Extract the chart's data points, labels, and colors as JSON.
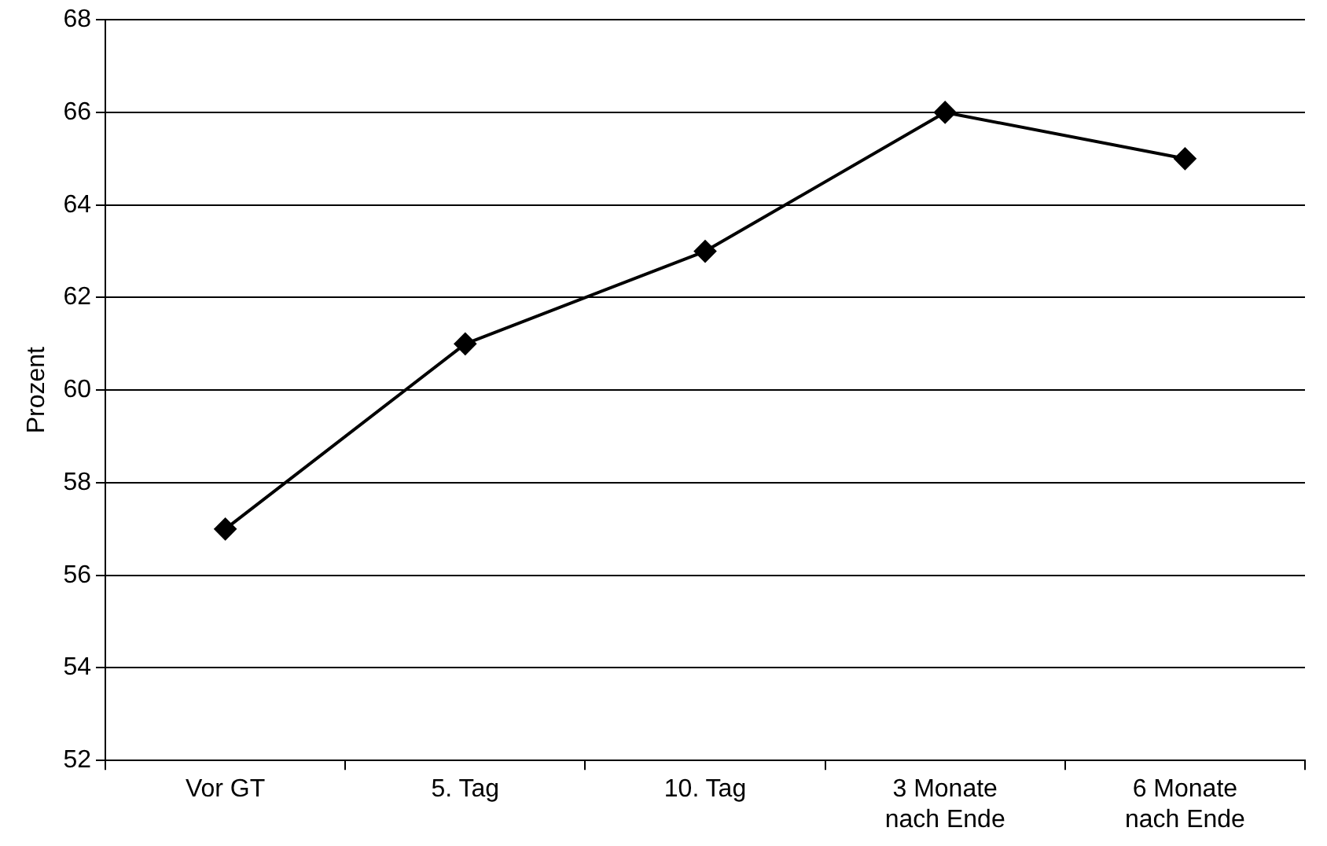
{
  "chart_data": {
    "type": "line",
    "ylabel": "Prozent",
    "categories": [
      "Vor GT",
      "5. Tag",
      "10. Tag",
      "3 Monate\nnach Ende",
      "6 Monate\nnach Ende"
    ],
    "series": [
      {
        "color": "#000000",
        "values": [
          57,
          61,
          63,
          66,
          65
        ]
      }
    ],
    "ylim": [
      52,
      68
    ],
    "yticks": [
      52,
      54,
      56,
      58,
      60,
      62,
      64,
      66,
      68
    ],
    "grid": "y",
    "legend": false,
    "marker": "diamond",
    "line_style": "solid"
  }
}
